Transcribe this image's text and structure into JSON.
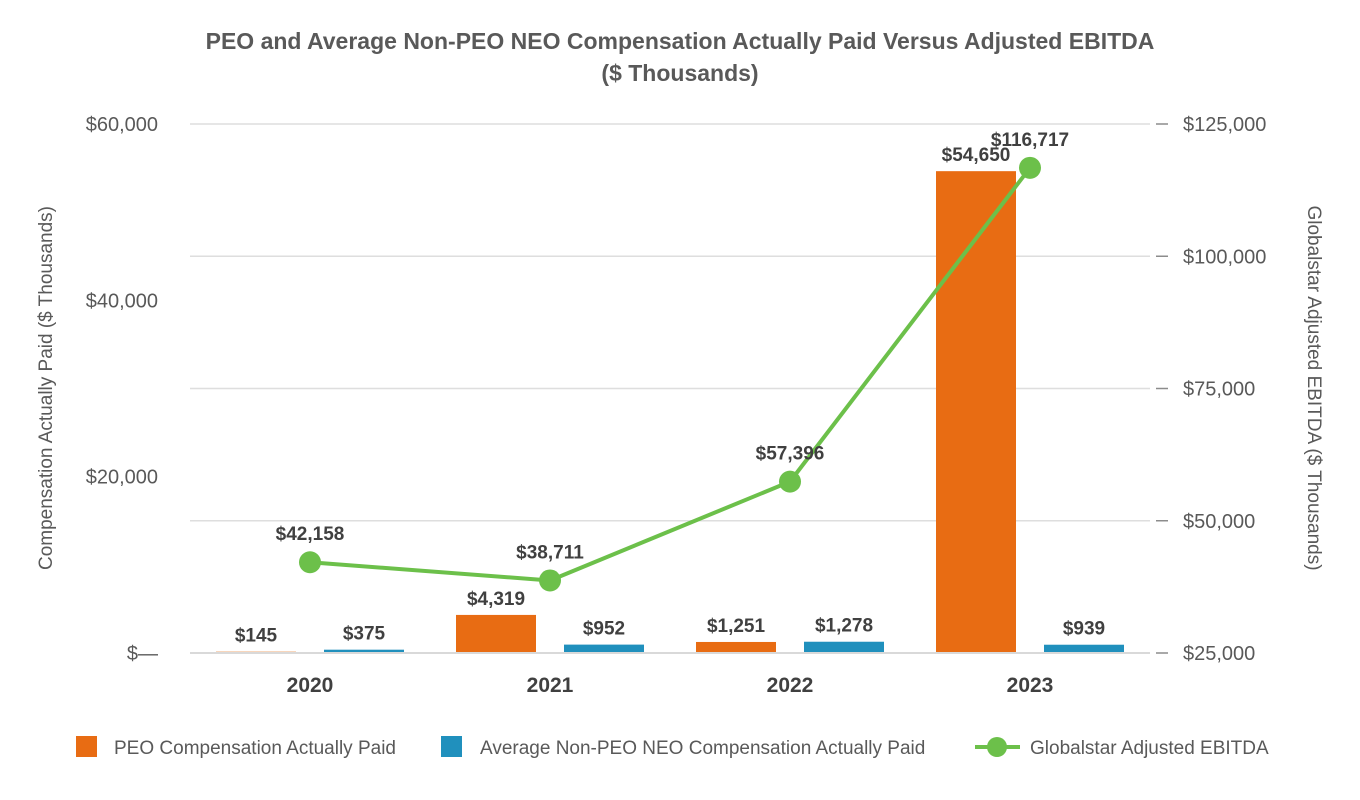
{
  "chart_data": {
    "type": "bar+line",
    "title": "PEO and Average Non-PEO NEO Compensation Actually Paid Versus Adjusted EBITDA",
    "subtitle": "($ Thousands)",
    "categories": [
      "2020",
      "2021",
      "2022",
      "2023"
    ],
    "ylabel": "Compensation Actually Paid ($ Thousands)",
    "y2label": "Globalstar Adjusted EBITDA ($ Thousands)",
    "ylim": [
      0,
      60000
    ],
    "y2lim": [
      25000,
      125000
    ],
    "yticks": [
      0,
      20000,
      40000,
      60000
    ],
    "ytick_labels": [
      "$—",
      "$20,000",
      "$40,000",
      "$60,000"
    ],
    "y2ticks": [
      25000,
      50000,
      75000,
      100000,
      125000
    ],
    "y2tick_labels": [
      "$25,000",
      "$50,000",
      "$75,000",
      "$100,000",
      "$125,000"
    ],
    "grid": true,
    "legend_position": "bottom",
    "series": [
      {
        "name": "PEO Compensation Actually Paid",
        "type": "bar",
        "axis": "left",
        "color": "#E86C13",
        "values": [
          145,
          4319,
          1251,
          54650
        ],
        "labels": [
          "$145",
          "$4,319",
          "$1,251",
          "$54,650"
        ]
      },
      {
        "name": "Average Non-PEO NEO Compensation Actually Paid",
        "type": "bar",
        "axis": "left",
        "color": "#2090BD",
        "values": [
          375,
          952,
          1278,
          939
        ],
        "labels": [
          "$375",
          "$952",
          "$1,278",
          "$939"
        ]
      },
      {
        "name": "Globalstar Adjusted EBITDA",
        "type": "line",
        "axis": "right",
        "color": "#6CC04A",
        "values": [
          42158,
          38711,
          57396,
          116717
        ],
        "labels": [
          "$42,158",
          "$38,711",
          "$57,396",
          "$116,717"
        ]
      }
    ]
  }
}
